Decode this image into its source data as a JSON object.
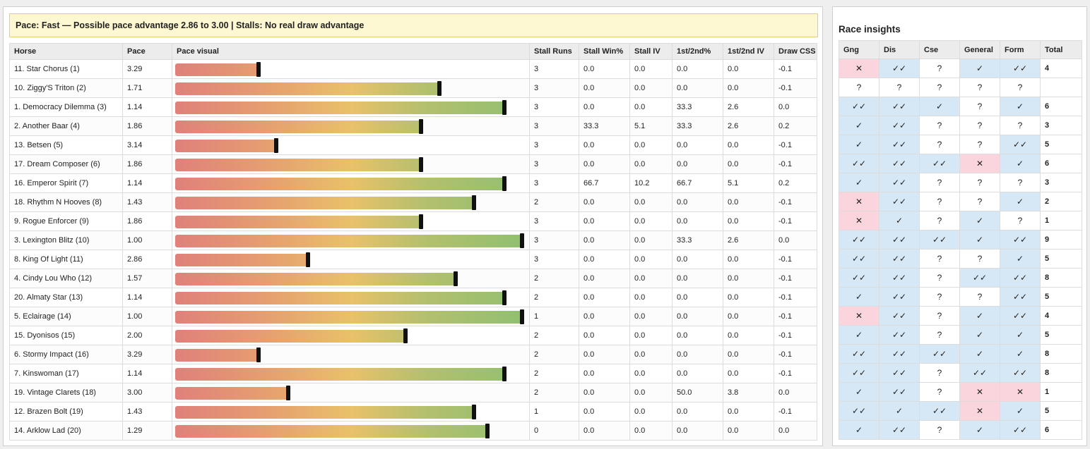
{
  "banner": "Pace: Fast — Possible pace advantage 2.86 to 3.00 | Stalls: No real draw advantage",
  "main_columns": [
    "Horse",
    "Pace",
    "Pace visual",
    "Stall Runs",
    "Stall Win%",
    "Stall IV",
    "1st/2nd%",
    "1st/2nd IV",
    "Draw CSS"
  ],
  "pace_visual_scale_max_fraction": 1.0,
  "rows": [
    {
      "horse": "11. Star Chorus (1)",
      "pace": "3.29",
      "bar": 0.237,
      "stall_runs": "3",
      "stall_win": "0.0",
      "stall_iv": "0.0",
      "first_second": "0.0",
      "first_second_iv": "0.0",
      "draw_css": "-0.1"
    },
    {
      "horse": "10. Ziggy'S Triton (2)",
      "pace": "1.71",
      "bar": 0.752,
      "stall_runs": "3",
      "stall_win": "0.0",
      "stall_iv": "0.0",
      "first_second": "0.0",
      "first_second_iv": "0.0",
      "draw_css": "-0.1"
    },
    {
      "horse": "1. Democracy Dilemma (3)",
      "pace": "1.14",
      "bar": 0.937,
      "stall_runs": "3",
      "stall_win": "0.0",
      "stall_iv": "0.0",
      "first_second": "33.3",
      "first_second_iv": "2.6",
      "draw_css": "0.0"
    },
    {
      "horse": "2. Another Baar (4)",
      "pace": "1.86",
      "bar": 0.701,
      "stall_runs": "3",
      "stall_win": "33.3",
      "stall_iv": "5.1",
      "first_second": "33.3",
      "first_second_iv": "2.6",
      "draw_css": "0.2"
    },
    {
      "horse": "13. Betsen (5)",
      "pace": "3.14",
      "bar": 0.287,
      "stall_runs": "3",
      "stall_win": "0.0",
      "stall_iv": "0.0",
      "first_second": "0.0",
      "first_second_iv": "0.0",
      "draw_css": "-0.1"
    },
    {
      "horse": "17. Dream Composer (6)",
      "pace": "1.86",
      "bar": 0.701,
      "stall_runs": "3",
      "stall_win": "0.0",
      "stall_iv": "0.0",
      "first_second": "0.0",
      "first_second_iv": "0.0",
      "draw_css": "-0.1"
    },
    {
      "horse": "16. Emperor Spirit (7)",
      "pace": "1.14",
      "bar": 0.937,
      "stall_runs": "3",
      "stall_win": "66.7",
      "stall_iv": "10.2",
      "first_second": "66.7",
      "first_second_iv": "5.1",
      "draw_css": "0.2"
    },
    {
      "horse": "18. Rhythm N Hooves (8)",
      "pace": "1.43",
      "bar": 0.851,
      "stall_runs": "2",
      "stall_win": "0.0",
      "stall_iv": "0.0",
      "first_second": "0.0",
      "first_second_iv": "0.0",
      "draw_css": "-0.1"
    },
    {
      "horse": "9. Rogue Enforcer (9)",
      "pace": "1.86",
      "bar": 0.701,
      "stall_runs": "3",
      "stall_win": "0.0",
      "stall_iv": "0.0",
      "first_second": "0.0",
      "first_second_iv": "0.0",
      "draw_css": "-0.1"
    },
    {
      "horse": "3. Lexington Blitz (10)",
      "pace": "1.00",
      "bar": 0.988,
      "stall_runs": "3",
      "stall_win": "0.0",
      "stall_iv": "0.0",
      "first_second": "33.3",
      "first_second_iv": "2.6",
      "draw_css": "0.0"
    },
    {
      "horse": "8. King Of Light (11)",
      "pace": "2.86",
      "bar": 0.378,
      "stall_runs": "3",
      "stall_win": "0.0",
      "stall_iv": "0.0",
      "first_second": "0.0",
      "first_second_iv": "0.0",
      "draw_css": "-0.1"
    },
    {
      "horse": "4. Cindy Lou Who (12)",
      "pace": "1.57",
      "bar": 0.799,
      "stall_runs": "2",
      "stall_win": "0.0",
      "stall_iv": "0.0",
      "first_second": "0.0",
      "first_second_iv": "0.0",
      "draw_css": "-0.1"
    },
    {
      "horse": "20. Almaty Star (13)",
      "pace": "1.14",
      "bar": 0.937,
      "stall_runs": "2",
      "stall_win": "0.0",
      "stall_iv": "0.0",
      "first_second": "0.0",
      "first_second_iv": "0.0",
      "draw_css": "-0.1"
    },
    {
      "horse": "5. Eclairage (14)",
      "pace": "1.00",
      "bar": 0.988,
      "stall_runs": "1",
      "stall_win": "0.0",
      "stall_iv": "0.0",
      "first_second": "0.0",
      "first_second_iv": "0.0",
      "draw_css": "-0.1"
    },
    {
      "horse": "15. Dyonisos (15)",
      "pace": "2.00",
      "bar": 0.656,
      "stall_runs": "2",
      "stall_win": "0.0",
      "stall_iv": "0.0",
      "first_second": "0.0",
      "first_second_iv": "0.0",
      "draw_css": "-0.1"
    },
    {
      "horse": "6. Stormy Impact (16)",
      "pace": "3.29",
      "bar": 0.237,
      "stall_runs": "2",
      "stall_win": "0.0",
      "stall_iv": "0.0",
      "first_second": "0.0",
      "first_second_iv": "0.0",
      "draw_css": "-0.1"
    },
    {
      "horse": "7. Kinswoman (17)",
      "pace": "1.14",
      "bar": 0.937,
      "stall_runs": "2",
      "stall_win": "0.0",
      "stall_iv": "0.0",
      "first_second": "0.0",
      "first_second_iv": "0.0",
      "draw_css": "-0.1"
    },
    {
      "horse": "19. Vintage Clarets (18)",
      "pace": "3.00",
      "bar": 0.322,
      "stall_runs": "2",
      "stall_win": "0.0",
      "stall_iv": "0.0",
      "first_second": "50.0",
      "first_second_iv": "3.8",
      "draw_css": "0.0"
    },
    {
      "horse": "12. Brazen Bolt (19)",
      "pace": "1.43",
      "bar": 0.851,
      "stall_runs": "1",
      "stall_win": "0.0",
      "stall_iv": "0.0",
      "first_second": "0.0",
      "first_second_iv": "0.0",
      "draw_css": "-0.1"
    },
    {
      "horse": "14. Arklow Lad (20)",
      "pace": "1.29",
      "bar": 0.889,
      "stall_runs": "0",
      "stall_win": "0.0",
      "stall_iv": "0.0",
      "first_second": "0.0",
      "first_second_iv": "0.0",
      "draw_css": "0.0"
    }
  ],
  "insights": {
    "title": "Race insights",
    "columns": [
      "Gng",
      "Dis",
      "Cse",
      "General",
      "Form",
      "Total"
    ],
    "rows": [
      {
        "gng": "✕",
        "dis": "✓✓",
        "cse": "?",
        "general": "✓",
        "form": "✓✓",
        "total": "4"
      },
      {
        "gng": "?",
        "dis": "?",
        "cse": "?",
        "general": "?",
        "form": "?",
        "total": ""
      },
      {
        "gng": "✓✓",
        "dis": "✓✓",
        "cse": "✓",
        "general": "?",
        "form": "✓",
        "total": "6"
      },
      {
        "gng": "✓",
        "dis": "✓✓",
        "cse": "?",
        "general": "?",
        "form": "?",
        "total": "3"
      },
      {
        "gng": "✓",
        "dis": "✓✓",
        "cse": "?",
        "general": "?",
        "form": "✓✓",
        "total": "5"
      },
      {
        "gng": "✓✓",
        "dis": "✓✓",
        "cse": "✓✓",
        "general": "✕",
        "form": "✓",
        "total": "6"
      },
      {
        "gng": "✓",
        "dis": "✓✓",
        "cse": "?",
        "general": "?",
        "form": "?",
        "total": "3"
      },
      {
        "gng": "✕",
        "dis": "✓✓",
        "cse": "?",
        "general": "?",
        "form": "✓",
        "total": "2"
      },
      {
        "gng": "✕",
        "dis": "✓",
        "cse": "?",
        "general": "✓",
        "form": "?",
        "total": "1"
      },
      {
        "gng": "✓✓",
        "dis": "✓✓",
        "cse": "✓✓",
        "general": "✓",
        "form": "✓✓",
        "total": "9"
      },
      {
        "gng": "✓✓",
        "dis": "✓✓",
        "cse": "?",
        "general": "?",
        "form": "✓",
        "total": "5"
      },
      {
        "gng": "✓✓",
        "dis": "✓✓",
        "cse": "?",
        "general": "✓✓",
        "form": "✓✓",
        "total": "8"
      },
      {
        "gng": "✓",
        "dis": "✓✓",
        "cse": "?",
        "general": "?",
        "form": "✓✓",
        "total": "5"
      },
      {
        "gng": "✕",
        "dis": "✓✓",
        "cse": "?",
        "general": "✓",
        "form": "✓✓",
        "total": "4"
      },
      {
        "gng": "✓",
        "dis": "✓✓",
        "cse": "?",
        "general": "✓",
        "form": "✓",
        "total": "5"
      },
      {
        "gng": "✓✓",
        "dis": "✓✓",
        "cse": "✓✓",
        "general": "✓",
        "form": "✓",
        "total": "8"
      },
      {
        "gng": "✓✓",
        "dis": "✓✓",
        "cse": "?",
        "general": "✓✓",
        "form": "✓✓",
        "total": "8"
      },
      {
        "gng": "✓",
        "dis": "✓✓",
        "cse": "?",
        "general": "✕",
        "form": "✕",
        "total": "1"
      },
      {
        "gng": "✓✓",
        "dis": "✓",
        "cse": "✓✓",
        "general": "✕",
        "form": "✓",
        "total": "5"
      },
      {
        "gng": "✓",
        "dis": "✓✓",
        "cse": "?",
        "general": "✓",
        "form": "✓✓",
        "total": "6"
      }
    ]
  },
  "colors": {
    "banner_bg": "#fdf7d2",
    "banner_border": "#e2cf72",
    "tick_bg": "#d6e8f6",
    "cross_bg": "#fbd5dd",
    "unknown_bg": "#ffffff",
    "marker": "#111111"
  }
}
